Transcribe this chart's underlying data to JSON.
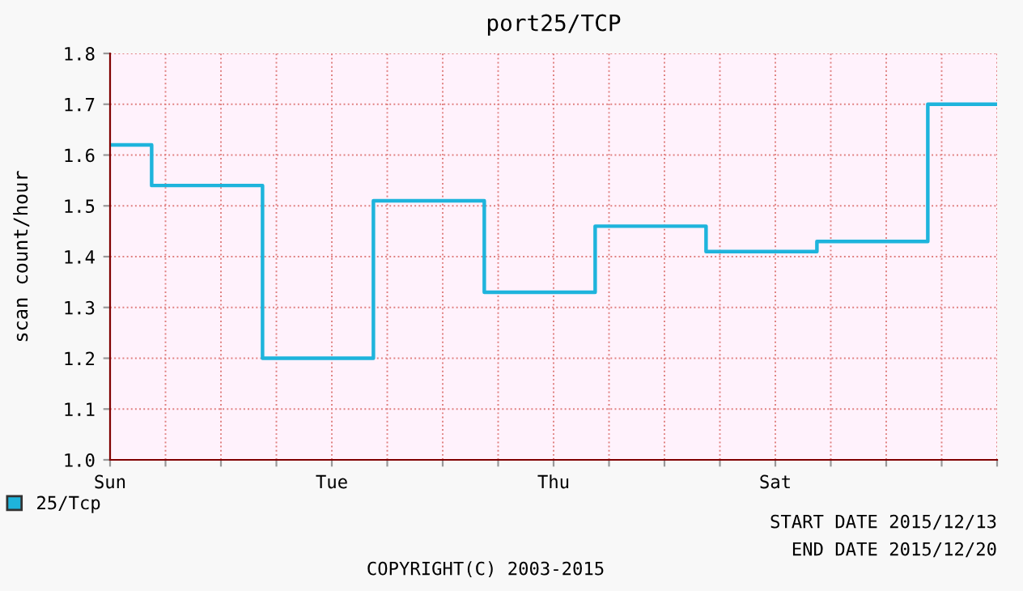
{
  "chart_data": {
    "type": "step",
    "title": "port25/TCP",
    "ylabel": "scan count/hour",
    "categories": [
      "Sun",
      null,
      null,
      null,
      null,
      null,
      null,
      null,
      null,
      null,
      null,
      null,
      null,
      null,
      null,
      null,
      "Tue",
      null,
      null,
      null,
      null,
      null,
      null,
      null,
      null,
      null,
      null,
      null,
      null,
      null,
      null,
      null,
      "Thu",
      null,
      null,
      null,
      null,
      null,
      null,
      null,
      null,
      null,
      null,
      null,
      null,
      null,
      null,
      null,
      "Sat",
      null,
      null,
      null,
      null,
      null,
      null,
      null,
      null,
      null,
      null,
      null,
      null,
      null,
      null,
      null,
      null
    ],
    "series": [
      {
        "name": "25/Tcp",
        "color": "#1eb4dc",
        "values": [
          1.62,
          1.62,
          1.62,
          1.54,
          1.54,
          1.54,
          1.54,
          1.54,
          1.54,
          1.54,
          1.54,
          1.2,
          1.2,
          1.2,
          1.2,
          1.2,
          1.2,
          1.2,
          1.2,
          1.51,
          1.51,
          1.51,
          1.51,
          1.51,
          1.51,
          1.51,
          1.51,
          1.33,
          1.33,
          1.33,
          1.33,
          1.33,
          1.33,
          1.33,
          1.33,
          1.46,
          1.46,
          1.46,
          1.46,
          1.46,
          1.46,
          1.46,
          1.46,
          1.41,
          1.41,
          1.41,
          1.41,
          1.41,
          1.41,
          1.41,
          1.41,
          1.43,
          1.43,
          1.43,
          1.43,
          1.43,
          1.43,
          1.43,
          1.43,
          1.7,
          1.7,
          1.7,
          1.7,
          1.7,
          1.7
        ]
      }
    ],
    "ylim": [
      1.0,
      1.8
    ],
    "yticks": [
      {
        "value": 1.0,
        "label": "1.0"
      },
      {
        "value": 1.1,
        "label": "1.1"
      },
      {
        "value": 1.2,
        "label": "1.2"
      },
      {
        "value": 1.3,
        "label": "1.3"
      },
      {
        "value": 1.4,
        "label": "1.4"
      },
      {
        "value": 1.5,
        "label": "1.5"
      },
      {
        "value": 1.6,
        "label": "1.6"
      },
      {
        "value": 1.7,
        "label": "1.7"
      },
      {
        "value": 1.8,
        "label": "1.8"
      }
    ],
    "grid": true,
    "legend": "bottom left",
    "annotations": [
      "START DATE 2015/12/13",
      "END DATE 2015/12/20",
      "COPYRIGHT(C) 2003-2015"
    ]
  }
}
